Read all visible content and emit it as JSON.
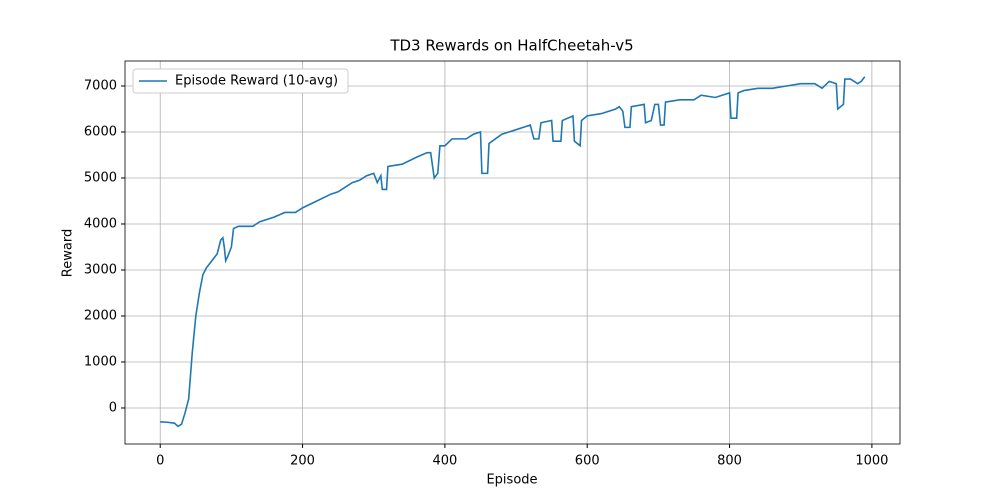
{
  "chart_data": {
    "type": "line",
    "title": "TD3 Rewards on HalfCheetah-v5",
    "xlabel": "Episode",
    "ylabel": "Reward",
    "x": [
      0,
      10,
      20,
      25,
      30,
      35,
      40,
      45,
      50,
      55,
      60,
      65,
      70,
      75,
      80,
      85,
      88,
      90,
      92,
      95,
      100,
      103,
      110,
      120,
      130,
      140,
      160,
      175,
      190,
      200,
      220,
      240,
      250,
      260,
      270,
      280,
      290,
      300,
      305,
      310,
      312,
      318,
      320,
      340,
      360,
      375,
      380,
      385,
      390,
      393,
      400,
      410,
      430,
      440,
      450,
      452,
      460,
      462,
      480,
      500,
      510,
      520,
      525,
      532,
      535,
      550,
      552,
      563,
      565,
      580,
      582,
      590,
      592,
      600,
      620,
      640,
      645,
      650,
      653,
      660,
      662,
      680,
      682,
      690,
      695,
      700,
      703,
      708,
      710,
      730,
      750,
      760,
      780,
      800,
      802,
      810,
      812,
      820,
      840,
      860,
      880,
      900,
      920,
      930,
      940,
      950,
      952,
      960,
      962,
      970,
      980,
      985,
      990
    ],
    "series": [
      {
        "name": "Episode Reward (10-avg)",
        "color": "#1f77b4",
        "values": [
          -300,
          -310,
          -330,
          -400,
          -350,
          -100,
          200,
          1200,
          2000,
          2500,
          2900,
          3050,
          3150,
          3250,
          3350,
          3650,
          3700,
          3500,
          3200,
          3300,
          3500,
          3900,
          3950,
          3950,
          3950,
          4050,
          4150,
          4250,
          4250,
          4350,
          4500,
          4650,
          4700,
          4800,
          4900,
          4950,
          5050,
          5100,
          4900,
          5050,
          4750,
          4750,
          5250,
          5300,
          5450,
          5550,
          5550,
          5000,
          5100,
          5700,
          5700,
          5850,
          5850,
          5950,
          6000,
          5100,
          5100,
          5750,
          5950,
          6050,
          6100,
          6150,
          5850,
          5850,
          6200,
          6250,
          5800,
          5800,
          6250,
          6350,
          5800,
          5700,
          6250,
          6350,
          6400,
          6500,
          6550,
          6450,
          6100,
          6100,
          6550,
          6600,
          6200,
          6250,
          6600,
          6600,
          6150,
          6150,
          6650,
          6700,
          6700,
          6800,
          6750,
          6850,
          6300,
          6300,
          6850,
          6900,
          6950,
          6950,
          7000,
          7050,
          7050,
          6950,
          7100,
          7050,
          6500,
          6600,
          7150,
          7150,
          7050,
          7100,
          7200
        ]
      }
    ],
    "xlim": [
      -49.5,
      1039.5
    ],
    "ylim": [
      -783,
      7543
    ],
    "xticks": [
      0,
      200,
      400,
      600,
      800,
      1000
    ],
    "yticks": [
      0,
      1000,
      2000,
      3000,
      4000,
      5000,
      6000,
      7000
    ],
    "grid": true,
    "legend": "upper left"
  }
}
